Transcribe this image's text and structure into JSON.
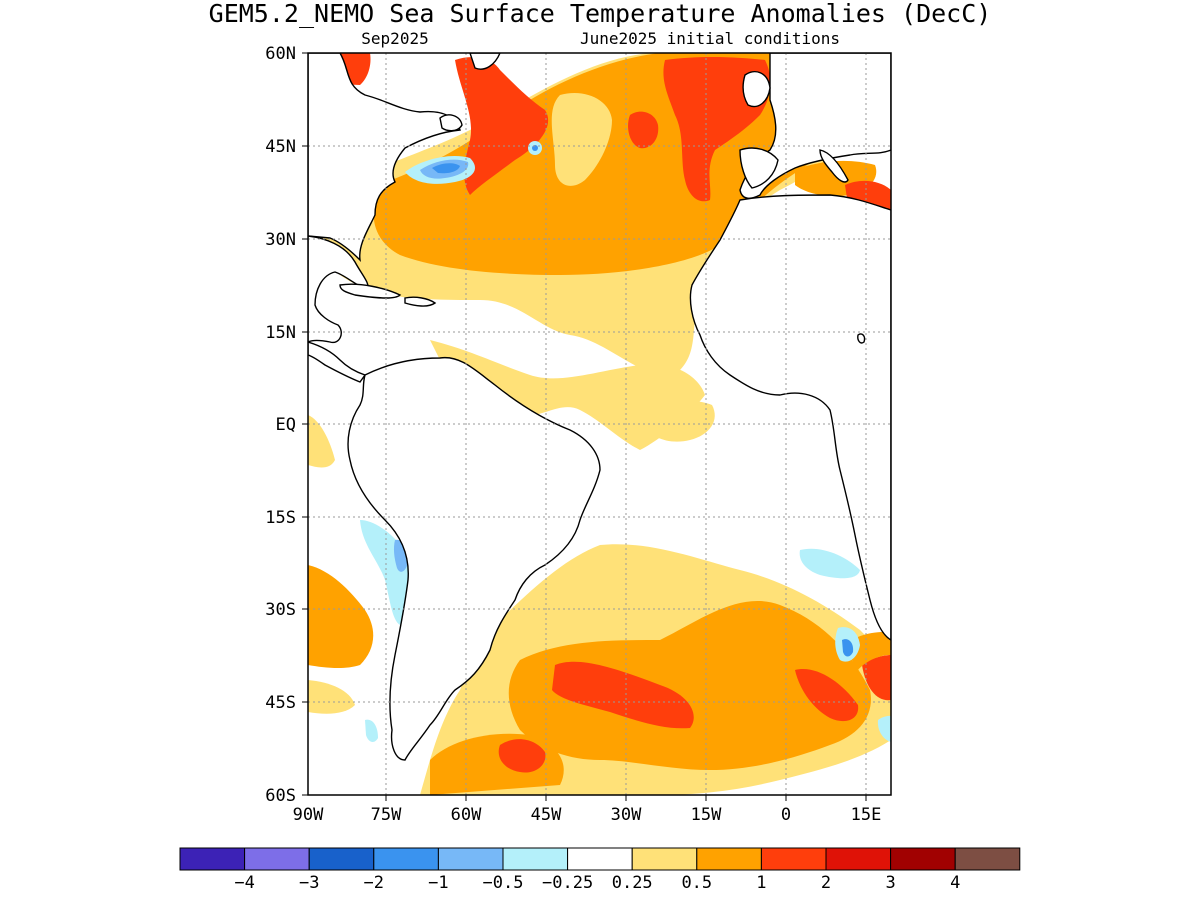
{
  "figure": {
    "title": "GEM5.2_NEMO Sea Surface Temperature Anomalies (DecC)",
    "valid_month": "Sep2025",
    "initial_conditions": "June2025 initial conditions"
  },
  "axes": {
    "lat_labels": [
      "60N",
      "45N",
      "30N",
      "15N",
      "EQ",
      "15S",
      "30S",
      "45S",
      "60S"
    ],
    "lon_labels": [
      "90W",
      "75W",
      "60W",
      "45W",
      "30W",
      "15W",
      "0",
      "15E"
    ]
  },
  "colorbar": {
    "colors": [
      "#3c22b6",
      "#7d6ee8",
      "#1861cb",
      "#3a93ef",
      "#77b8f7",
      "#b4f0fa",
      "#ffffff",
      "#ffe178",
      "#ffa200",
      "#ff3e0c",
      "#df1207",
      "#a10101",
      "#7d4e43"
    ],
    "labels": [
      "-4",
      "-3",
      "-2",
      "-1",
      "-0.5",
      "-0.25",
      "0.25",
      "0.5",
      "1",
      "2",
      "3",
      "4"
    ]
  },
  "colors": {
    "land": "#ffffff",
    "coastline": "#000000",
    "grid": "#9a9a9a",
    "neutral": "#ffffff",
    "warm_0_25": "#ffe178",
    "warm_0_5": "#ffa200",
    "warm_1": "#ff3e0c",
    "cool_0_25": "#b4f0fa",
    "cool_0_5": "#77b8f7",
    "cool_1": "#3a93ef"
  }
}
